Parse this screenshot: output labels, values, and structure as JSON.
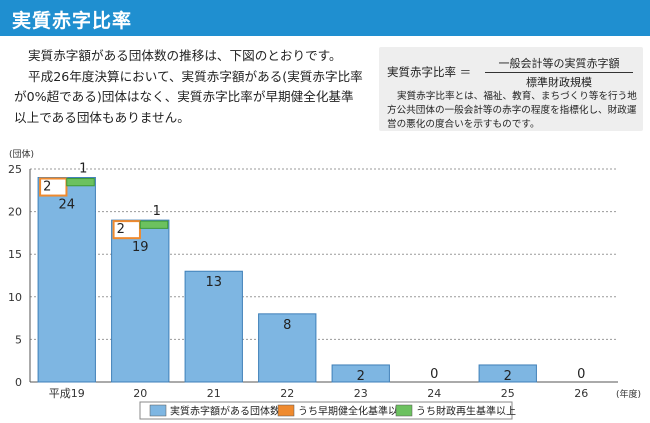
{
  "header": {
    "title": "実質赤字比率"
  },
  "intro": {
    "p1": "実質赤字額がある団体数の推移は、下図のとおりです。",
    "p2": "平成26年度決算において、実質赤字額がある(実質赤字比率が0%超である)団体はなく、実質赤字比率が早期健全化基準以上である団体もありません。"
  },
  "definition": {
    "label": "実質赤字比率 ＝",
    "numerator": "一般会計等の実質赤字額",
    "denominator": "標準財政規模",
    "description": "実質赤字比率とは、福祉、教育、まちづくり等を行う地方公共団体の一般会計等の赤字の程度を指標化し、財政運営の悪化の度合いを示すものです。"
  },
  "colors": {
    "header": "#1f8fd0",
    "blue": "#7eb6e2",
    "orange": "#ef8a2e",
    "green": "#6cc15f"
  },
  "chart_data": {
    "type": "bar",
    "categories": [
      "平成19",
      "20",
      "21",
      "22",
      "23",
      "24",
      "25",
      "26"
    ],
    "series": [
      {
        "name": "実質赤字額がある団体数",
        "values": [
          24,
          19,
          13,
          8,
          2,
          0,
          2,
          0
        ],
        "color": "#7eb6e2"
      },
      {
        "name": "うち早期健全化基準以上",
        "values": [
          2,
          2,
          0,
          0,
          0,
          0,
          0,
          0
        ],
        "color": "#ef8a2e"
      },
      {
        "name": "うち財政再生基準以上",
        "values": [
          1,
          1,
          0,
          0,
          0,
          0,
          0,
          0
        ],
        "color": "#6cc15f"
      }
    ],
    "ylabel": "(団体)",
    "xlabel": "(年度)",
    "ylim": [
      0,
      25
    ],
    "yticks": [
      0,
      5,
      10,
      15,
      20,
      25
    ],
    "grid": true,
    "legend_position": "bottom"
  }
}
